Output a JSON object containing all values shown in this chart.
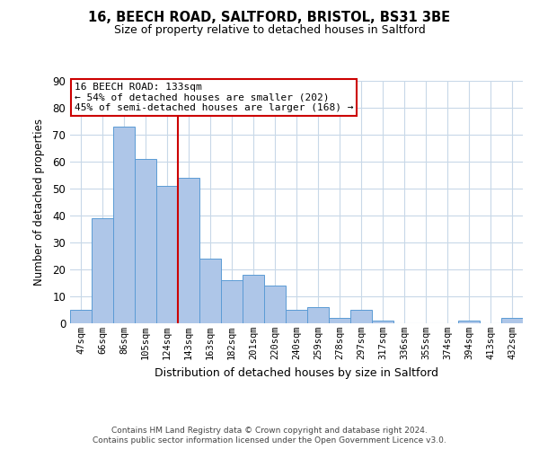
{
  "title": "16, BEECH ROAD, SALTFORD, BRISTOL, BS31 3BE",
  "subtitle": "Size of property relative to detached houses in Saltford",
  "xlabel": "Distribution of detached houses by size in Saltford",
  "ylabel": "Number of detached properties",
  "bar_labels": [
    "47sqm",
    "66sqm",
    "86sqm",
    "105sqm",
    "124sqm",
    "143sqm",
    "163sqm",
    "182sqm",
    "201sqm",
    "220sqm",
    "240sqm",
    "259sqm",
    "278sqm",
    "297sqm",
    "317sqm",
    "336sqm",
    "355sqm",
    "374sqm",
    "394sqm",
    "413sqm",
    "432sqm"
  ],
  "bar_values": [
    5,
    39,
    73,
    61,
    51,
    54,
    24,
    16,
    18,
    14,
    5,
    6,
    2,
    5,
    1,
    0,
    0,
    0,
    1,
    0,
    2
  ],
  "bar_color": "#aec6e8",
  "bar_edge_color": "#5b9bd5",
  "ylim": [
    0,
    90
  ],
  "yticks": [
    0,
    10,
    20,
    30,
    40,
    50,
    60,
    70,
    80,
    90
  ],
  "vline_x": 4.5,
  "vline_color": "#cc0000",
  "annotation_title": "16 BEECH ROAD: 133sqm",
  "annotation_line1": "← 54% of detached houses are smaller (202)",
  "annotation_line2": "45% of semi-detached houses are larger (168) →",
  "annotation_box_color": "#ffffff",
  "annotation_box_edge": "#cc0000",
  "footer1": "Contains HM Land Registry data © Crown copyright and database right 2024.",
  "footer2": "Contains public sector information licensed under the Open Government Licence v3.0.",
  "background_color": "#ffffff",
  "grid_color": "#c8d8e8"
}
